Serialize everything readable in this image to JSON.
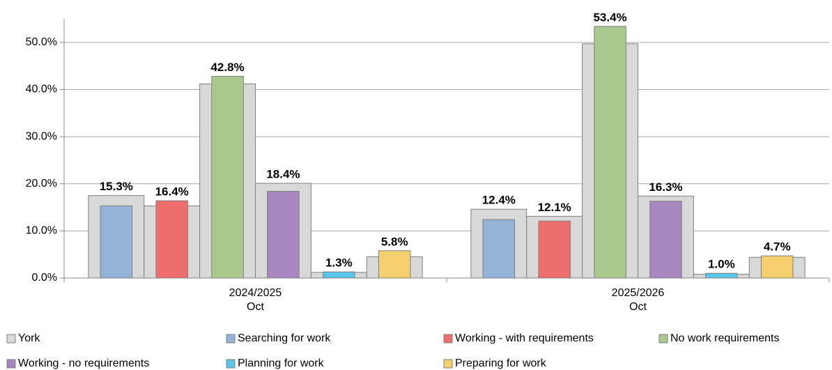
{
  "chart_data": {
    "type": "bar",
    "categories": [
      [
        "2024/2025",
        "Oct"
      ],
      [
        "2025/2026",
        "Oct"
      ]
    ],
    "ylim": [
      0,
      55
    ],
    "yticks": [
      {
        "value": 0,
        "label": "0.0%"
      },
      {
        "value": 10,
        "label": "10.0%"
      },
      {
        "value": 20,
        "label": "20.0%"
      },
      {
        "value": 30,
        "label": "30.0%"
      },
      {
        "value": 40,
        "label": "40.0%"
      },
      {
        "value": 50,
        "label": "50.0%"
      }
    ],
    "grid": true,
    "legend": "bottom",
    "series": [
      {
        "name": "York",
        "color": "#d9d9d9",
        "values": [
          [
            17.5,
            15.3,
            41.2,
            20.1,
            1.2,
            4.5
          ],
          [
            14.6,
            13.1,
            49.7,
            17.4,
            0.8,
            4.4
          ]
        ]
      },
      {
        "name": "Searching for work",
        "color": "#95b3d7",
        "values": [
          15.3,
          12.4
        ],
        "value_labels": [
          "15.3%",
          "12.4%"
        ]
      },
      {
        "name": "Working - with requirements",
        "color": "#ee6e6e",
        "values": [
          16.4,
          12.1
        ],
        "value_labels": [
          "16.4%",
          "12.1%"
        ]
      },
      {
        "name": "No work requirements",
        "color": "#a9c98f",
        "values": [
          42.8,
          53.4
        ],
        "value_labels": [
          "42.8%",
          "53.4%"
        ]
      },
      {
        "name": "Working - no requirements",
        "color": "#a886c0",
        "values": [
          18.4,
          16.3
        ],
        "value_labels": [
          "18.4%",
          "16.3%"
        ]
      },
      {
        "name": "Planning for work",
        "color": "#5bc6ea",
        "values": [
          1.3,
          1.0
        ],
        "value_labels": [
          "1.3%",
          "1.0%"
        ]
      },
      {
        "name": "Preparing for work",
        "color": "#f5cf6e",
        "values": [
          5.8,
          4.7
        ],
        "value_labels": [
          "5.8%",
          "4.7%"
        ]
      }
    ]
  }
}
